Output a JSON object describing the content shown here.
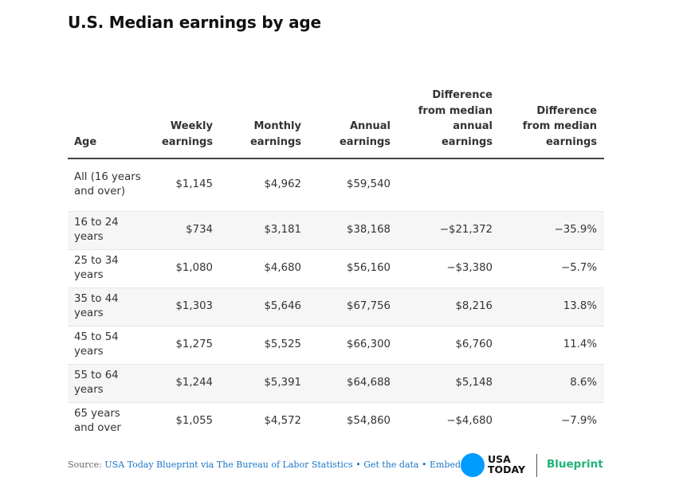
{
  "chart_data": {
    "type": "table",
    "title": "U.S. Median earnings by age",
    "columns": [
      "Age",
      "Weekly earnings",
      "Monthly earnings",
      "Annual earnings",
      "Difference from median annual earnings",
      "Difference from median earnings"
    ],
    "rows": [
      [
        "All (16 years and over)",
        "$1,145",
        "$4,962",
        "$59,540",
        "",
        ""
      ],
      [
        "16 to 24 years",
        "$734",
        "$3,181",
        "$38,168",
        "−$21,372",
        "−35.9%"
      ],
      [
        "25 to 34 years",
        "$1,080",
        "$4,680",
        "$56,160",
        "−$3,380",
        "−5.7%"
      ],
      [
        "35 to 44 years",
        "$1,303",
        "$5,646",
        "$67,756",
        "$8,216",
        "13.8%"
      ],
      [
        "45 to 54 years",
        "$1,275",
        "$5,525",
        "$66,300",
        "$6,760",
        "11.4%"
      ],
      [
        "55 to 64 years",
        "$1,244",
        "$5,391",
        "$64,688",
        "$5,148",
        "8.6%"
      ],
      [
        "65 years and over",
        "$1,055",
        "$4,572",
        "$54,860",
        "−$4,680",
        "−7.9%"
      ]
    ]
  },
  "footer": {
    "source_label": "Source:",
    "source_link": "USA Today Blueprint via The Bureau of Labor Statistics",
    "separator": "•",
    "get_data": "Get the data",
    "embed": "Embed"
  },
  "logo": {
    "line1": "USA",
    "line2": "TODAY",
    "brand": "Blueprint",
    "circle_color": "#009bff",
    "brand_color": "#1eb378",
    "link_color": "#1a76c8"
  }
}
